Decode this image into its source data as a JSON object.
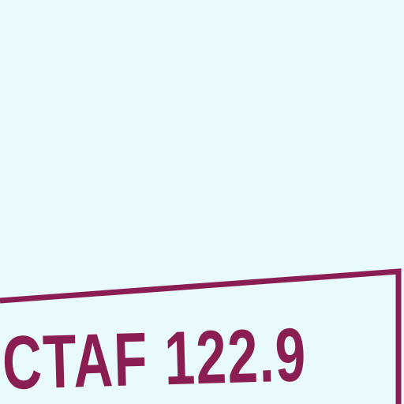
{
  "map": {
    "background_color": "#e8fafd",
    "label_color": "#8a1d52",
    "frequency_box": {
      "text": "CTAF 122.9"
    }
  }
}
